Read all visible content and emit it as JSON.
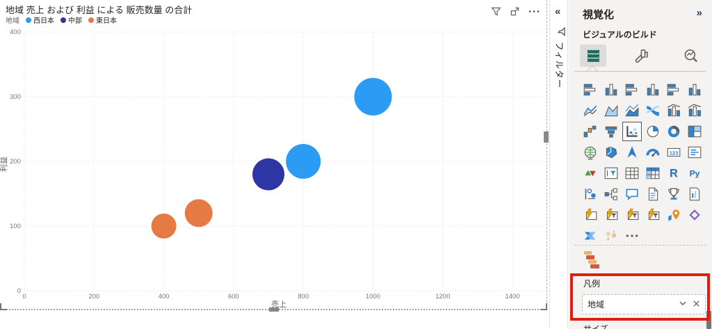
{
  "visual": {
    "title": "地域 売上 および 利益 による 販売数量 の合計",
    "toolbar_icons": [
      "filter-icon",
      "focus-mode-icon",
      "more-options-icon"
    ]
  },
  "chart_data": {
    "type": "scatter",
    "subtype": "bubble",
    "title": "地域 売上 および 利益 による 販売数量 の合計",
    "legend_title": "地域",
    "xlabel": "売上",
    "ylabel": "利益",
    "xlim": [
      0,
      1500
    ],
    "ylim": [
      0,
      400
    ],
    "x_ticks": [
      0,
      200,
      400,
      600,
      800,
      1000,
      1200,
      1400
    ],
    "y_ticks": [
      0,
      100,
      200,
      300,
      400
    ],
    "grid": "dotted",
    "legend_position": "top-left",
    "series": [
      {
        "name": "西日本",
        "color": "#2B9BF3",
        "points": [
          {
            "x": 800,
            "y": 200,
            "radius_px": 25
          },
          {
            "x": 1000,
            "y": 300,
            "radius_px": 27
          }
        ]
      },
      {
        "name": "中部",
        "color": "#2E35A4",
        "points": [
          {
            "x": 700,
            "y": 180,
            "radius_px": 23
          }
        ]
      },
      {
        "name": "東日本",
        "color": "#E67A44",
        "points": [
          {
            "x": 400,
            "y": 100,
            "radius_px": 18
          },
          {
            "x": 500,
            "y": 120,
            "radius_px": 20
          }
        ]
      }
    ]
  },
  "filter_pane": {
    "collapse_glyph": "«",
    "title": "フィルター"
  },
  "viz_pane": {
    "title": "視覚化",
    "expand_glyph": "»",
    "section_title": "ビジュアルのビルド",
    "tabs": [
      {
        "name": "build-visual",
        "selected": true
      },
      {
        "name": "format-visual",
        "selected": false
      },
      {
        "name": "analytics",
        "selected": false
      }
    ],
    "gallery": [
      {
        "name": "stacked-bar-chart",
        "kind": "hbars"
      },
      {
        "name": "stacked-column-chart",
        "kind": "vbars"
      },
      {
        "name": "clustered-bar-chart",
        "kind": "hbars"
      },
      {
        "name": "clustered-column-chart",
        "kind": "vbars"
      },
      {
        "name": "100-stacked-bar-chart",
        "kind": "hbars"
      },
      {
        "name": "100-stacked-column-chart",
        "kind": "vbars"
      },
      {
        "name": "line-chart",
        "kind": "line"
      },
      {
        "name": "area-chart",
        "kind": "area"
      },
      {
        "name": "stacked-area-chart",
        "kind": "area2"
      },
      {
        "name": "ribbon-chart",
        "kind": "ribbon"
      },
      {
        "name": "line-and-stacked-column-chart",
        "kind": "combo"
      },
      {
        "name": "line-and-clustered-column-chart",
        "kind": "combo"
      },
      {
        "name": "waterfall-chart",
        "kind": "waterfall"
      },
      {
        "name": "funnel-chart",
        "kind": "funnel"
      },
      {
        "name": "scatter-chart",
        "kind": "scatter",
        "selected": true
      },
      {
        "name": "pie-chart",
        "kind": "pie"
      },
      {
        "name": "donut-chart",
        "kind": "donut"
      },
      {
        "name": "treemap",
        "kind": "treemap"
      },
      {
        "name": "map",
        "kind": "globe"
      },
      {
        "name": "filled-map",
        "kind": "fillmap"
      },
      {
        "name": "azure-map",
        "kind": "arrow"
      },
      {
        "name": "gauge",
        "kind": "gauge"
      },
      {
        "name": "card",
        "kind": "card123"
      },
      {
        "name": "multi-row-card",
        "kind": "mrcard"
      },
      {
        "name": "kpi",
        "kind": "kpi"
      },
      {
        "name": "slicer",
        "kind": "slicer"
      },
      {
        "name": "table",
        "kind": "table"
      },
      {
        "name": "matrix",
        "kind": "matrix"
      },
      {
        "name": "r-script-visual",
        "kind": "rtext"
      },
      {
        "name": "python-visual",
        "kind": "pytext"
      },
      {
        "name": "key-influencers",
        "kind": "influ"
      },
      {
        "name": "decomposition-tree",
        "kind": "tree"
      },
      {
        "name": "q-and-a",
        "kind": "chat"
      },
      {
        "name": "smart-narrative",
        "kind": "doc"
      },
      {
        "name": "metrics",
        "kind": "trophy"
      },
      {
        "name": "paginated-report",
        "kind": "pgreport"
      },
      {
        "name": "ai-card",
        "kind": "boltcard"
      },
      {
        "name": "ai-slicer-button",
        "kind": "boltslicer"
      },
      {
        "name": "ai-slicer-text",
        "kind": "boltslicer"
      },
      {
        "name": "ai-slicer-list",
        "kind": "boltslicer"
      },
      {
        "name": "arcgis-map",
        "kind": "pin"
      },
      {
        "name": "power-apps",
        "kind": "papps"
      },
      {
        "name": "power-automate",
        "kind": "pauto"
      },
      {
        "name": "custom-visual",
        "kind": "faded"
      },
      {
        "name": "more-visuals-options",
        "kind": "dots"
      }
    ],
    "custom_visual_icon": "brick-stack-icon",
    "wells": {
      "legend_label": "凡例",
      "legend_value": "地域",
      "size_label": "サイズ"
    }
  },
  "annotation": {
    "shape": "red-rectangle",
    "color": "#E01D10",
    "around": "legend-field-well"
  }
}
